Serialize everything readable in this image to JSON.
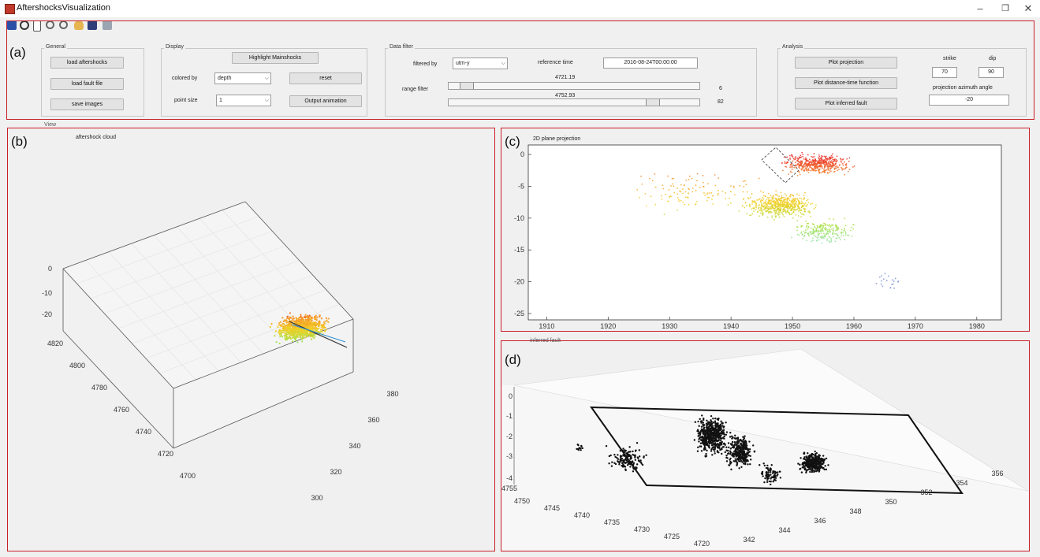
{
  "window": {
    "title": "AftershocksVisualization",
    "minimize": "–",
    "restore": "❐",
    "close": "✕",
    "icon": "matlab-figure-icon"
  },
  "toolbar": {
    "icons": [
      "save-icon",
      "rotate-icon",
      "new-figure-icon",
      "zoom-in-icon",
      "zoom-out-icon",
      "pan-icon",
      "data-cursor-icon",
      "print-icon"
    ]
  },
  "panel_labels": {
    "a": "(a)",
    "b": "(b)",
    "c": "(c)",
    "d": "(d)"
  },
  "general": {
    "title": "General",
    "load_aftershocks": "load aftershocks",
    "load_fault_file": "load fault file",
    "save_images": "save images"
  },
  "display": {
    "title": "Display",
    "highlight_mainshocks": "Highlight Mainshocks",
    "colored_by_label": "colored by",
    "colored_by_value": "depth",
    "reset": "reset",
    "point_size_label": "point size",
    "point_size_value": "1",
    "output_animation": "Output animation"
  },
  "data_filter": {
    "title": "Data filter",
    "filtered_by_label": "filtered by",
    "filtered_by_value": "utm-y",
    "reference_time_label": "reference time",
    "reference_time_value": "2016-08-24T00:00:00",
    "range_filter_label": "range filter",
    "range_min_value": "4721.19",
    "range_max_value": "4752.93",
    "slider1_end": "6",
    "slider2_end": "82",
    "slider1_fraction": 0.06,
    "slider2_fraction": 0.82
  },
  "analysis": {
    "title": "Analysis",
    "plot_projection": "Plot projection",
    "plot_distance_time": "Plot distance-time function",
    "plot_inferred_fault": "Plot inferred fault",
    "strike_label": "strike",
    "dip_label": "dip",
    "strike_value": "70",
    "dip_value": "90",
    "azimuth_label": "projection azimuth angle",
    "azimuth_value": "-20"
  },
  "view_label": "View",
  "plot_b": {
    "title": "aftershock cloud",
    "z_ticks": [
      "0",
      "-10",
      "-20"
    ],
    "y_ticks": [
      "4820",
      "4800",
      "4780",
      "4760",
      "4740",
      "4720",
      "4700"
    ],
    "x_ticks": [
      "300",
      "320",
      "340",
      "360",
      "380"
    ]
  },
  "plot_c": {
    "title": "2D plane projection",
    "y_ticks": [
      "0",
      "-5",
      "-10",
      "-15",
      "-20",
      "-25"
    ],
    "x_ticks": [
      "1910",
      "1920",
      "1930",
      "1940",
      "1950",
      "1960",
      "1970",
      "1980"
    ]
  },
  "plot_d": {
    "title": "inferred fault",
    "z_ticks": [
      "0",
      "-1",
      "-2",
      "-3",
      "-4"
    ],
    "y_ticks": [
      "4755",
      "4750",
      "4745",
      "4740",
      "4735",
      "4730",
      "4725",
      "4720"
    ],
    "x_ticks": [
      "342",
      "344",
      "346",
      "348",
      "350",
      "352",
      "354",
      "356"
    ]
  },
  "colors": {
    "highlight_box": "#c8202a",
    "depth_shallow": "#e8262a",
    "depth_mid": "#f2d027",
    "depth_deep": "#7ee2d2",
    "scatter_black": "#111111"
  }
}
